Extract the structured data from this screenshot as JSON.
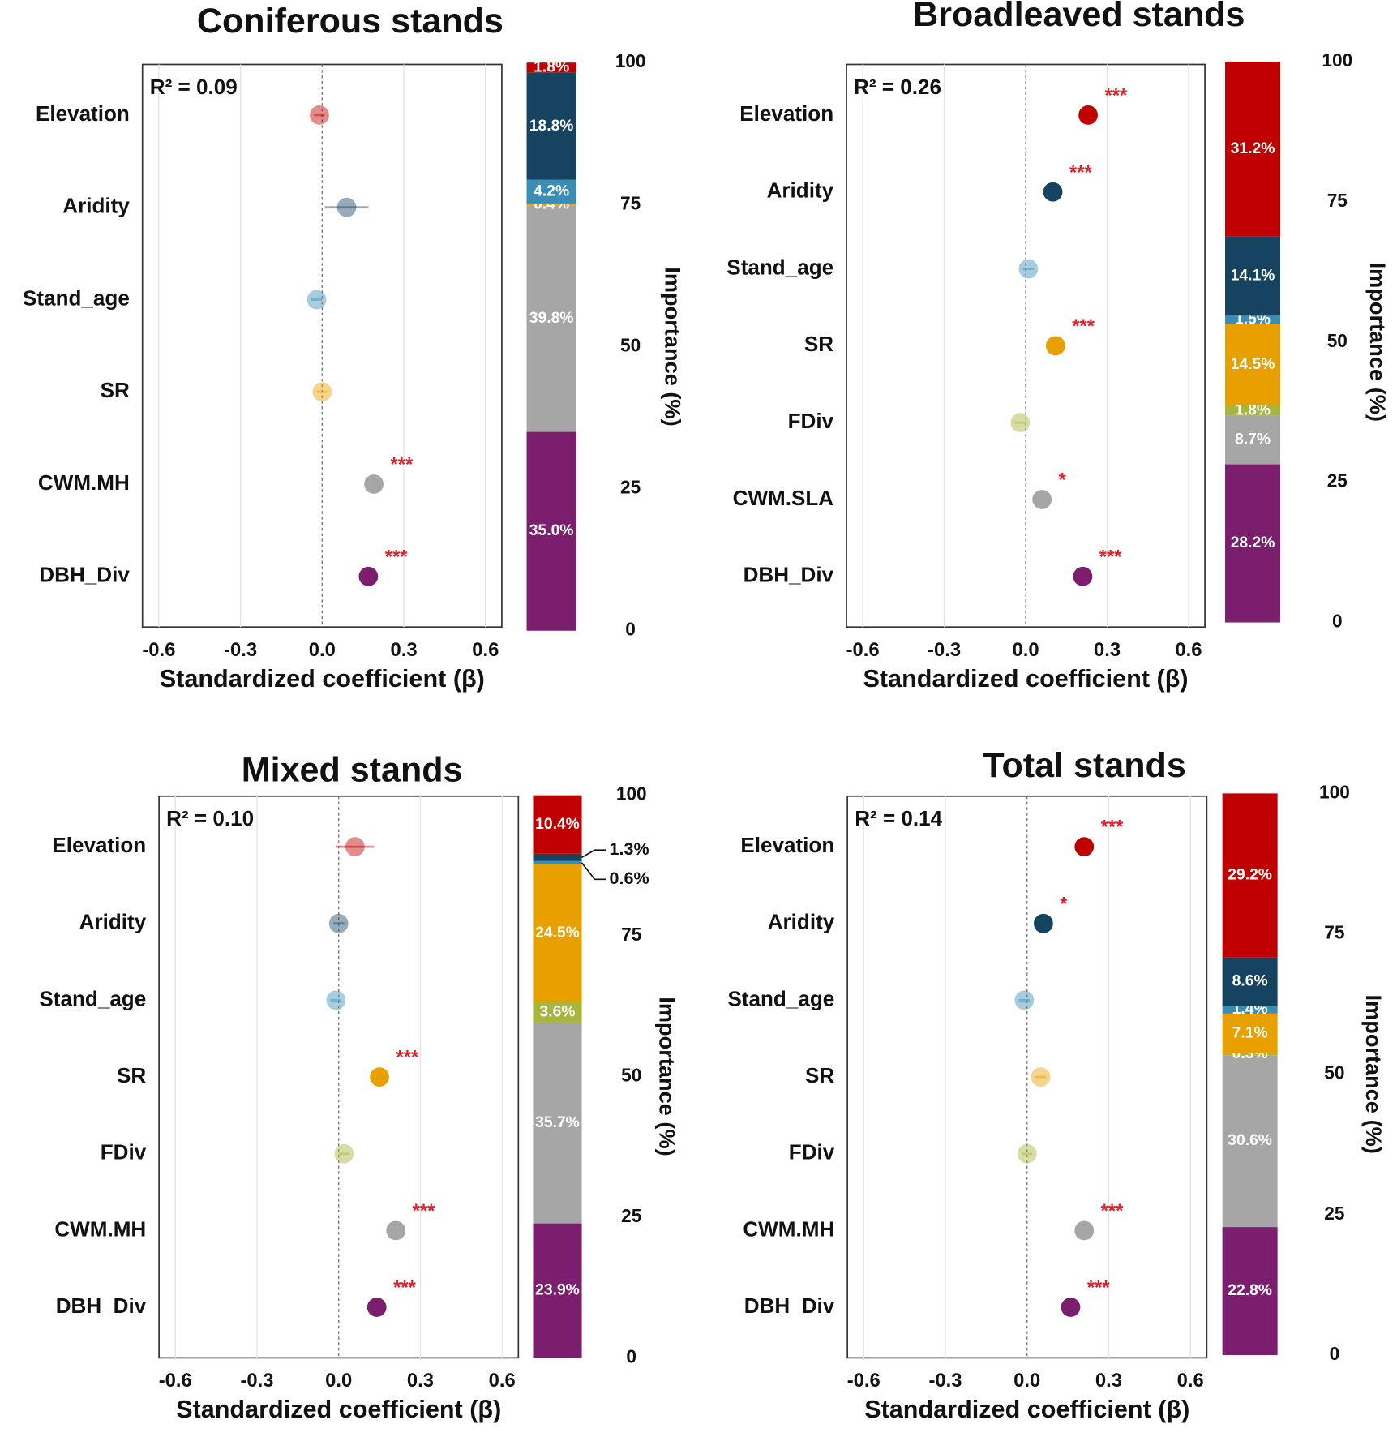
{
  "chart_data": [
    {
      "type": "coefficient",
      "title": "Coniferous stands",
      "r2_label": "R² = 0.09",
      "categories": [
        "Elevation",
        "Aridity",
        "Stand_age",
        "SR",
        "CWM.MH",
        "DBH_Div"
      ],
      "values": [
        -0.01,
        0.09,
        -0.02,
        0.0,
        0.19,
        0.17
      ],
      "errors": [
        0.02,
        0.08,
        0.02,
        0.02,
        0.02,
        0.02
      ],
      "colors": [
        "#c00000",
        "#16435f",
        "#3a8db5",
        "#e8a000",
        "#a6a6a6",
        "#7b1e6e"
      ],
      "significance": [
        null,
        null,
        null,
        null,
        "***",
        "***"
      ],
      "xlabel": "Standardized coefficient (β)",
      "xlim": [
        -0.66,
        0.66
      ],
      "xticks": [
        {
          "value": -0.6,
          "label": "-0.6"
        },
        {
          "value": -0.3,
          "label": "-0.3"
        },
        {
          "value": 0,
          "label": "0.0"
        },
        {
          "value": 0.3,
          "label": "0.3"
        },
        {
          "value": 0.6,
          "label": "0.6"
        }
      ],
      "grid": true,
      "importance": {
        "ylabel": "Importance (%)",
        "ylim": [
          0,
          100
        ],
        "yticks": [
          0,
          25,
          50,
          75,
          100
        ],
        "callout_labels": false,
        "segments": [
          {
            "name": "DBH_Div",
            "value": 35.0,
            "value_label": "35.0%",
            "color": "#7b1e6e"
          },
          {
            "name": "CWM.MH",
            "value": 39.8,
            "value_label": "39.8%",
            "color": "#a6a6a6"
          },
          {
            "name": "SR",
            "value": 0.4,
            "value_label": "0.4%",
            "color": "#e8a000"
          },
          {
            "name": "Stand_age",
            "value": 4.2,
            "value_label": "4.2%",
            "color": "#3a8db5"
          },
          {
            "name": "Aridity",
            "value": 18.8,
            "value_label": "18.8%",
            "color": "#16435f"
          },
          {
            "name": "Elevation",
            "value": 1.8,
            "value_label": "1.8%",
            "color": "#c00000"
          }
        ]
      }
    },
    {
      "type": "coefficient",
      "title": "Broadleaved stands",
      "r2_label": "R² = 0.26",
      "categories": [
        "Elevation",
        "Aridity",
        "Stand_age",
        "SR",
        "FDiv",
        "CWM.SLA",
        "DBH_Div"
      ],
      "values": [
        0.23,
        0.1,
        0.01,
        0.11,
        -0.02,
        0.06,
        0.21
      ],
      "errors": [
        0.02,
        0.02,
        0.02,
        0.02,
        0.02,
        0.02,
        0.02
      ],
      "colors": [
        "#c00000",
        "#16435f",
        "#3a8db5",
        "#e8a000",
        "#a8b43a",
        "#a6a6a6",
        "#7b1e6e"
      ],
      "significance": [
        "***",
        "***",
        null,
        "***",
        null,
        "*",
        "***"
      ],
      "xlabel": "Standardized coefficient (β)",
      "xlim": [
        -0.66,
        0.66
      ],
      "xticks": [
        {
          "value": -0.6,
          "label": "-0.6"
        },
        {
          "value": -0.3,
          "label": "-0.3"
        },
        {
          "value": 0,
          "label": "0.0"
        },
        {
          "value": 0.3,
          "label": "0.3"
        },
        {
          "value": 0.6,
          "label": "0.6"
        }
      ],
      "grid": true,
      "importance": {
        "ylabel": "Importance (%)",
        "ylim": [
          0,
          100
        ],
        "yticks": [
          0,
          25,
          50,
          75,
          100
        ],
        "callout_labels": false,
        "segments": [
          {
            "name": "DBH_Div",
            "value": 28.2,
            "value_label": "28.2%",
            "color": "#7b1e6e"
          },
          {
            "name": "CWM.SLA",
            "value": 8.7,
            "value_label": "8.7%",
            "color": "#a6a6a6"
          },
          {
            "name": "FDiv",
            "value": 1.8,
            "value_label": "1.8%",
            "color": "#a8b43a"
          },
          {
            "name": "SR",
            "value": 14.5,
            "value_label": "14.5%",
            "color": "#e8a000"
          },
          {
            "name": "Stand_age",
            "value": 1.5,
            "value_label": "1.5%",
            "color": "#3a8db5"
          },
          {
            "name": "Aridity",
            "value": 14.1,
            "value_label": "14.1%",
            "color": "#16435f"
          },
          {
            "name": "Elevation",
            "value": 31.2,
            "value_label": "31.2%",
            "color": "#c00000"
          }
        ]
      }
    },
    {
      "type": "coefficient",
      "title": "Mixed stands",
      "r2_label": "R² = 0.10",
      "categories": [
        "Elevation",
        "Aridity",
        "Stand_age",
        "SR",
        "FDiv",
        "CWM.MH",
        "DBH_Div"
      ],
      "values": [
        0.06,
        0.0,
        -0.01,
        0.15,
        0.02,
        0.21,
        0.14
      ],
      "errors": [
        0.07,
        0.02,
        0.02,
        0.02,
        0.02,
        0.02,
        0.02
      ],
      "colors": [
        "#c00000",
        "#16435f",
        "#3a8db5",
        "#e8a000",
        "#a8b43a",
        "#a6a6a6",
        "#7b1e6e"
      ],
      "significance": [
        null,
        null,
        null,
        "***",
        null,
        "***",
        "***"
      ],
      "xlabel": "Standardized coefficient (β)",
      "xlim": [
        -0.66,
        0.66
      ],
      "xticks": [
        {
          "value": -0.6,
          "label": "-0.6"
        },
        {
          "value": -0.3,
          "label": "-0.3"
        },
        {
          "value": 0,
          "label": "0.0"
        },
        {
          "value": 0.3,
          "label": "0.3"
        },
        {
          "value": 0.6,
          "label": "0.6"
        }
      ],
      "grid": true,
      "importance": {
        "ylabel": "Importance (%)",
        "ylim": [
          0,
          100
        ],
        "yticks": [
          0,
          25,
          50,
          75,
          100
        ],
        "callout_labels": true,
        "segments": [
          {
            "name": "DBH_Div",
            "value": 23.9,
            "value_label": "23.9%",
            "color": "#7b1e6e"
          },
          {
            "name": "CWM.MH",
            "value": 35.7,
            "value_label": "35.7%",
            "color": "#a6a6a6"
          },
          {
            "name": "FDiv",
            "value": 3.6,
            "value_label": "3.6%",
            "color": "#a8b43a"
          },
          {
            "name": "SR",
            "value": 24.5,
            "value_label": "24.5%",
            "color": "#e8a000"
          },
          {
            "name": "Stand_age",
            "value": 0.6,
            "value_label": "0.6%",
            "color": "#3a8db5"
          },
          {
            "name": "Aridity",
            "value": 1.3,
            "value_label": "1.3%",
            "color": "#16435f"
          },
          {
            "name": "Elevation",
            "value": 10.4,
            "value_label": "10.4%",
            "color": "#c00000"
          }
        ]
      }
    },
    {
      "type": "coefficient",
      "title": "Total stands",
      "r2_label": "R² = 0.14",
      "categories": [
        "Elevation",
        "Aridity",
        "Stand_age",
        "SR",
        "FDiv",
        "CWM.MH",
        "DBH_Div"
      ],
      "values": [
        0.21,
        0.06,
        -0.01,
        0.05,
        0.0,
        0.21,
        0.16
      ],
      "errors": [
        0.02,
        0.02,
        0.02,
        0.02,
        0.02,
        0.02,
        0.02
      ],
      "colors": [
        "#c00000",
        "#16435f",
        "#3a8db5",
        "#e8a000",
        "#a8b43a",
        "#a6a6a6",
        "#7b1e6e"
      ],
      "significance": [
        "***",
        "*",
        null,
        null,
        null,
        "***",
        "***"
      ],
      "xlabel": "Standardized coefficient (β)",
      "xlim": [
        -0.66,
        0.66
      ],
      "xticks": [
        {
          "value": -0.6,
          "label": "-0.6"
        },
        {
          "value": -0.3,
          "label": "-0.3"
        },
        {
          "value": 0,
          "label": "0.0"
        },
        {
          "value": 0.3,
          "label": "0.3"
        },
        {
          "value": 0.6,
          "label": "0.6"
        }
      ],
      "grid": true,
      "importance": {
        "ylabel": "Importance (%)",
        "ylim": [
          0,
          100
        ],
        "yticks": [
          0,
          25,
          50,
          75,
          100
        ],
        "callout_labels": false,
        "segments": [
          {
            "name": "DBH_Div",
            "value": 22.8,
            "value_label": "22.8%",
            "color": "#7b1e6e"
          },
          {
            "name": "CWM.MH",
            "value": 30.6,
            "value_label": "30.6%",
            "color": "#a6a6a6"
          },
          {
            "name": "FDiv",
            "value": 0.3,
            "value_label": "0.3%",
            "color": "#a8b43a"
          },
          {
            "name": "SR",
            "value": 7.1,
            "value_label": "7.1%",
            "color": "#e8a000"
          },
          {
            "name": "Stand_age",
            "value": 1.4,
            "value_label": "1.4%",
            "color": "#3a8db5"
          },
          {
            "name": "Aridity",
            "value": 8.6,
            "value_label": "8.6%",
            "color": "#16435f"
          },
          {
            "name": "Elevation",
            "value": 29.2,
            "value_label": "29.2%",
            "color": "#c00000"
          }
        ]
      }
    }
  ]
}
